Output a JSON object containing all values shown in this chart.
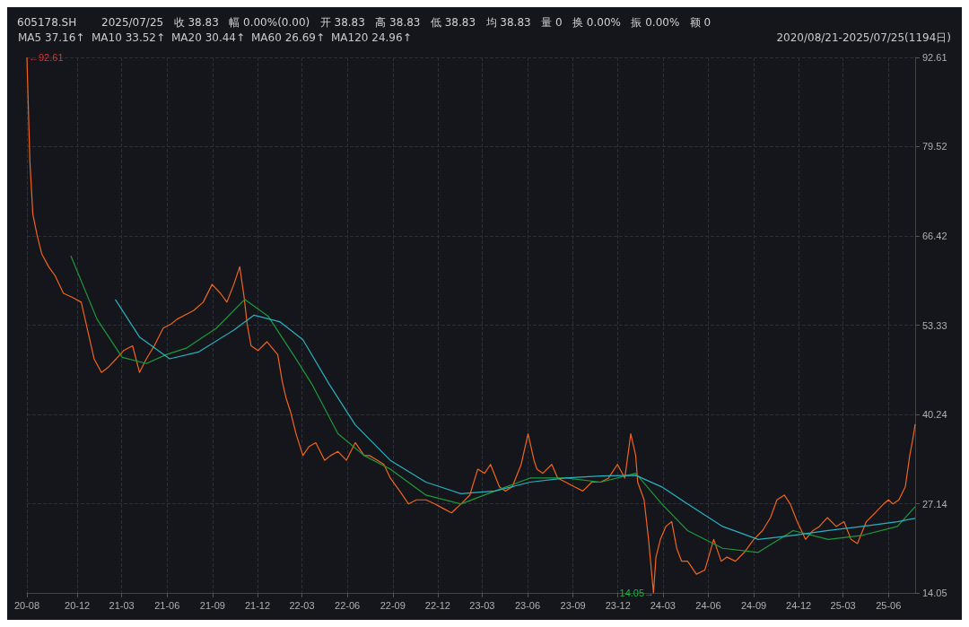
{
  "chart_data": {
    "type": "line",
    "title": "605178.SH",
    "subtitle": "2025/07/25   收 38.83   幅 0.00%(0.00)   开 38.83   高 38.83   低 38.83   均 38.83   量 0   换 0.00%   振 0.00%   额 0",
    "annotations": [
      "MA5 37.16↑",
      "MA10 33.52↑",
      "MA20 30.44↑",
      "MA60 26.69↑",
      "MA120 24.96↑",
      "2020/08/21-2025/07/25(1194日)",
      {
        "text": "←92.61",
        "x": "2020-08-21",
        "y": 92.61
      },
      {
        "text": "14.05→",
        "x": "2024-02-16",
        "y": 14.05
      }
    ],
    "xlim": [
      "2020-08-21",
      "2025-07-25"
    ],
    "xticks": [
      {
        "value": "2020-08-21",
        "label": "20-08"
      },
      {
        "value": "2020-12-01",
        "label": "20-12"
      },
      {
        "value": "2021-03-01",
        "label": "21-03"
      },
      {
        "value": "2021-06-01",
        "label": "21-06"
      },
      {
        "value": "2021-09-01",
        "label": "21-09"
      },
      {
        "value": "2021-12-01",
        "label": "21-12"
      },
      {
        "value": "2022-03-01",
        "label": "22-03"
      },
      {
        "value": "2022-06-01",
        "label": "22-06"
      },
      {
        "value": "2022-09-01",
        "label": "22-09"
      },
      {
        "value": "2022-12-01",
        "label": "22-12"
      },
      {
        "value": "2023-03-01",
        "label": "23-03"
      },
      {
        "value": "2023-06-01",
        "label": "23-06"
      },
      {
        "value": "2023-09-01",
        "label": "23-09"
      },
      {
        "value": "2023-12-01",
        "label": "23-12"
      },
      {
        "value": "2024-03-01",
        "label": "24-03"
      },
      {
        "value": "2024-06-01",
        "label": "24-06"
      },
      {
        "value": "2024-09-01",
        "label": "24-09"
      },
      {
        "value": "2024-12-01",
        "label": "24-12"
      },
      {
        "value": "2025-03-01",
        "label": "25-03"
      },
      {
        "value": "2025-06-01",
        "label": "25-06"
      }
    ],
    "ylim": [
      14.05,
      92.61
    ],
    "yticks": [
      14.05,
      27.14,
      40.24,
      53.33,
      66.42,
      79.52,
      92.61
    ],
    "grid": true,
    "marker": "none",
    "line_style": "solid",
    "series": [
      {
        "color": "#f0641e",
        "x": [
          "2020-08-21",
          "2020-08-27",
          "2020-09-02",
          "2020-09-11",
          "2020-09-20",
          "2020-10-04",
          "2020-10-17",
          "2020-11-03",
          "2020-11-21",
          "2020-12-09",
          "2020-12-21",
          "2021-01-04",
          "2021-01-19",
          "2021-02-01",
          "2021-02-18",
          "2021-03-05",
          "2021-03-23",
          "2021-04-06",
          "2021-04-20",
          "2021-05-06",
          "2021-05-24",
          "2021-06-09",
          "2021-06-21",
          "2021-07-07",
          "2021-07-25",
          "2021-08-13",
          "2021-08-31",
          "2021-09-17",
          "2021-09-30",
          "2021-10-14",
          "2021-10-26",
          "2021-11-04",
          "2021-11-10",
          "2021-11-18",
          "2021-12-02",
          "2021-12-20",
          "2022-01-11",
          "2022-01-20",
          "2022-01-28",
          "2022-02-06",
          "2022-02-17",
          "2022-03-03",
          "2022-03-15",
          "2022-03-29",
          "2022-04-16",
          "2022-04-28",
          "2022-05-13",
          "2022-05-30",
          "2022-06-17",
          "2022-07-05",
          "2022-07-16",
          "2022-08-01",
          "2022-08-14",
          "2022-08-27",
          "2022-09-15",
          "2022-10-03",
          "2022-10-19",
          "2022-11-07",
          "2022-11-25",
          "2022-12-13",
          "2022-12-29",
          "2023-01-17",
          "2023-02-04",
          "2023-02-20",
          "2023-03-06",
          "2023-03-18",
          "2023-04-05",
          "2023-04-17",
          "2023-05-01",
          "2023-05-19",
          "2023-06-02",
          "2023-06-14",
          "2023-06-20",
          "2023-07-02",
          "2023-07-20",
          "2023-08-01",
          "2023-08-17",
          "2023-09-04",
          "2023-09-21",
          "2023-10-09",
          "2023-10-27",
          "2023-11-12",
          "2023-11-30",
          "2023-12-15",
          "2023-12-27",
          "2024-01-06",
          "2024-01-10",
          "2024-01-23",
          "2024-02-01",
          "2024-02-11",
          "2024-02-16",
          "2024-02-25",
          "2024-03-07",
          "2024-03-19",
          "2024-03-29",
          "2024-04-08",
          "2024-04-20",
          "2024-05-08",
          "2024-05-25",
          "2024-06-12",
          "2024-06-27",
          "2024-07-09",
          "2024-07-26",
          "2024-08-13",
          "2024-09-01",
          "2024-09-19",
          "2024-10-05",
          "2024-10-18",
          "2024-11-02",
          "2024-11-14",
          "2024-11-28",
          "2024-12-15",
          "2024-12-30",
          "2025-01-12",
          "2025-01-28",
          "2025-02-15",
          "2025-03-03",
          "2025-03-17",
          "2025-03-30",
          "2025-04-17",
          "2025-05-05",
          "2025-05-22",
          "2025-06-01",
          "2025-06-10",
          "2025-06-22",
          "2025-07-05",
          "2025-07-14",
          "2025-07-20",
          "2025-07-25"
        ],
        "values": [
          92.61,
          77.4,
          69.6,
          66.4,
          63.8,
          61.9,
          60.6,
          58.0,
          57.4,
          56.7,
          52.9,
          48.4,
          46.4,
          47.1,
          48.4,
          49.6,
          50.3,
          46.4,
          48.4,
          50.3,
          52.9,
          53.5,
          54.2,
          54.8,
          55.5,
          56.7,
          59.3,
          58.0,
          56.7,
          59.3,
          61.9,
          57.4,
          53.5,
          50.3,
          49.6,
          50.9,
          49.0,
          45.1,
          42.6,
          40.6,
          37.4,
          34.2,
          35.5,
          36.1,
          33.5,
          34.2,
          34.8,
          33.5,
          36.1,
          34.2,
          34.2,
          33.5,
          32.9,
          30.9,
          29.0,
          27.1,
          27.7,
          27.7,
          27.1,
          26.4,
          25.8,
          27.1,
          28.4,
          32.2,
          31.6,
          32.9,
          29.6,
          29.0,
          29.6,
          32.9,
          37.4,
          33.5,
          32.2,
          31.6,
          32.9,
          30.9,
          30.3,
          29.6,
          29.0,
          30.3,
          30.3,
          30.9,
          32.9,
          30.9,
          37.4,
          34.2,
          30.3,
          27.7,
          21.9,
          14.05,
          19.3,
          21.9,
          23.8,
          24.5,
          20.6,
          18.7,
          18.7,
          16.8,
          17.4,
          21.9,
          18.7,
          19.3,
          18.7,
          20.0,
          21.9,
          23.2,
          25.1,
          27.7,
          28.4,
          27.1,
          24.5,
          21.9,
          23.2,
          23.8,
          25.1,
          23.8,
          24.5,
          21.9,
          21.3,
          24.5,
          25.8,
          27.1,
          27.7,
          27.1,
          27.7,
          29.6,
          34.2,
          36.5,
          38.8
        ]
      },
      {
        "color": "#1e9a3c",
        "x": [
          "2020-11-18",
          "2021-01-10",
          "2021-03-02",
          "2021-04-20",
          "2021-05-30",
          "2021-07-11",
          "2021-09-09",
          "2021-11-05",
          "2021-12-23",
          "2022-02-15",
          "2022-03-21",
          "2022-05-13",
          "2022-07-05",
          "2022-08-27",
          "2022-11-07",
          "2023-01-17",
          "2023-03-27",
          "2023-06-06",
          "2023-08-17",
          "2023-10-27",
          "2024-01-06",
          "2024-02-28",
          "2024-04-20",
          "2024-06-30",
          "2024-09-10",
          "2024-11-20",
          "2025-01-30",
          "2025-04-09",
          "2025-06-19",
          "2025-07-25"
        ],
        "values": [
          63.5,
          54.2,
          48.6,
          47.7,
          49.0,
          50.0,
          52.9,
          57.1,
          54.6,
          48.6,
          44.7,
          37.4,
          34.2,
          32.2,
          28.4,
          27.1,
          29.0,
          30.9,
          30.9,
          30.3,
          31.6,
          27.1,
          23.2,
          20.6,
          20.0,
          23.2,
          21.9,
          22.5,
          23.8,
          26.7
        ]
      },
      {
        "color": "#2ab0c0",
        "x": [
          "2021-02-16",
          "2021-04-06",
          "2021-06-06",
          "2021-08-04",
          "2021-10-14",
          "2021-11-24",
          "2022-01-16",
          "2022-03-03",
          "2022-04-25",
          "2022-06-17",
          "2022-08-27",
          "2022-11-07",
          "2023-01-17",
          "2023-03-27",
          "2023-06-06",
          "2023-08-17",
          "2023-10-27",
          "2024-01-06",
          "2024-02-28",
          "2024-04-20",
          "2024-06-30",
          "2024-09-10",
          "2024-11-20",
          "2025-01-30",
          "2025-04-09",
          "2025-06-19",
          "2025-07-25"
        ],
        "values": [
          57.1,
          51.6,
          48.4,
          49.4,
          52.6,
          54.8,
          53.8,
          51.2,
          44.7,
          38.7,
          33.5,
          30.3,
          28.6,
          29.0,
          30.3,
          30.9,
          31.2,
          31.3,
          29.6,
          27.1,
          23.8,
          21.9,
          22.5,
          23.2,
          23.8,
          24.5,
          25.0
        ]
      }
    ]
  }
}
